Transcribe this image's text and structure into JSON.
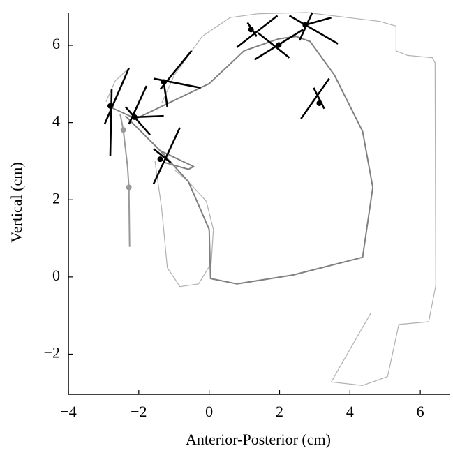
{
  "chart_data": {
    "type": "line",
    "xlabel": "Anterior-Posterior (cm)",
    "ylabel": "Vertical (cm)",
    "xlim": [
      -4,
      6.85
    ],
    "ylim": [
      -3.04,
      6.85
    ],
    "xticks": [
      {
        "value": -4,
        "label": "−4"
      },
      {
        "value": -2,
        "label": "−2"
      },
      0,
      2,
      4,
      6
    ],
    "yticks": [
      {
        "value": -2,
        "label": "−2"
      },
      0,
      2,
      4,
      6
    ],
    "series": [
      {
        "color": "#b0b0b0",
        "x": [
          -1.35,
          -0.99,
          -0.2,
          0.59,
          1.39,
          2.77,
          4.85,
          5.31,
          5.31,
          5.64,
          6.34,
          6.42,
          6.44,
          6.24,
          5.39,
          5.07,
          4.36,
          3.47,
          3.96,
          4.59
        ],
        "y": [
          4.5,
          5.23,
          6.23,
          6.72,
          6.82,
          6.85,
          6.62,
          6.5,
          5.86,
          5.74,
          5.68,
          5.55,
          -0.22,
          -1.16,
          -1.23,
          -2.58,
          -2.81,
          -2.72,
          -1.94,
          -0.94
        ]
      },
      {
        "color": "#b0b0b0",
        "x": [
          -1.54,
          -1.35,
          -1.19,
          -0.83,
          -0.3,
          0.06,
          0.12,
          -0.08,
          -0.59,
          -0.99
        ],
        "y": [
          3.01,
          1.78,
          0.24,
          -0.25,
          -0.18,
          0.36,
          1.23,
          1.96,
          2.47,
          2.78
        ]
      },
      {
        "color": "#b0b0b0",
        "x": [
          -2.93,
          -2.67,
          -2.28
        ],
        "y": [
          4.54,
          5.08,
          5.41
        ]
      },
      {
        "color": "#808080",
        "x": [
          -2.83,
          -2.08,
          0,
          0.99,
          1.98,
          2.48,
          2.87,
          3.56,
          4.36,
          4.65,
          4.36,
          2.38,
          0.79,
          0.04,
          0,
          -0.59,
          -1.39,
          -2.38
        ],
        "y": [
          4.41,
          4.1,
          5.01,
          5.86,
          6.17,
          6.23,
          6.1,
          5.23,
          3.77,
          2.32,
          0.51,
          0.05,
          -0.18,
          -0.04,
          1.23,
          2.47,
          3.27,
          4.17
        ]
      },
      {
        "color": "#808080",
        "x": [
          -1.39,
          -0.44,
          -0.59,
          -1.29
        ],
        "y": [
          3.27,
          2.86,
          2.79,
          2.97
        ]
      },
      {
        "color": "#999999",
        "x": [
          -2.53,
          -2.44,
          -2.32,
          -2.28,
          -2.26
        ],
        "y": [
          4.23,
          3.81,
          2.87,
          2.32,
          0.78
        ]
      }
    ],
    "points": [
      {
        "color": "#999999",
        "x": [
          -2.44,
          -2.28
        ],
        "y": [
          3.81,
          2.32
        ]
      },
      {
        "color": "#000000",
        "x": [
          -2.81,
          -2.12,
          -1.29,
          -1.39,
          1.19,
          1.98,
          2.73,
          3.13
        ],
        "y": [
          4.43,
          4.14,
          5.05,
          3.05,
          6.41,
          6.01,
          6.53,
          4.5
        ]
      }
    ],
    "segments": {
      "color": "#000000",
      "lines": [
        [
          -2.97,
          3.96,
          -2.28,
          5.41
        ],
        [
          -2.81,
          3.14,
          -2.77,
          4.86
        ],
        [
          -2.38,
          4.41,
          -1.68,
          3.68
        ],
        [
          -1.78,
          4.95,
          -2.28,
          3.96
        ],
        [
          -2.12,
          4.14,
          -1.29,
          4.17
        ],
        [
          -1.39,
          4.86,
          -0.5,
          5.86
        ],
        [
          -1.58,
          5.14,
          -0.24,
          4.9
        ],
        [
          -1.29,
          5.05,
          -1.19,
          4.41
        ],
        [
          -1.58,
          2.41,
          -0.83,
          3.87
        ],
        [
          -1.58,
          3.32,
          -1.09,
          2.96
        ],
        [
          0.79,
          5.95,
          1.94,
          6.77
        ],
        [
          1.09,
          6.59,
          1.35,
          6.23
        ],
        [
          1.29,
          5.63,
          2.67,
          6.41
        ],
        [
          1.39,
          6.32,
          2.28,
          5.68
        ],
        [
          2.28,
          6.77,
          3.66,
          6.04
        ],
        [
          2.57,
          6.13,
          2.93,
          6.85
        ],
        [
          2.73,
          6.53,
          3.47,
          6.72
        ],
        [
          2.61,
          4.1,
          3.41,
          5.14
        ],
        [
          2.97,
          4.9,
          3.27,
          4.36
        ]
      ]
    }
  }
}
